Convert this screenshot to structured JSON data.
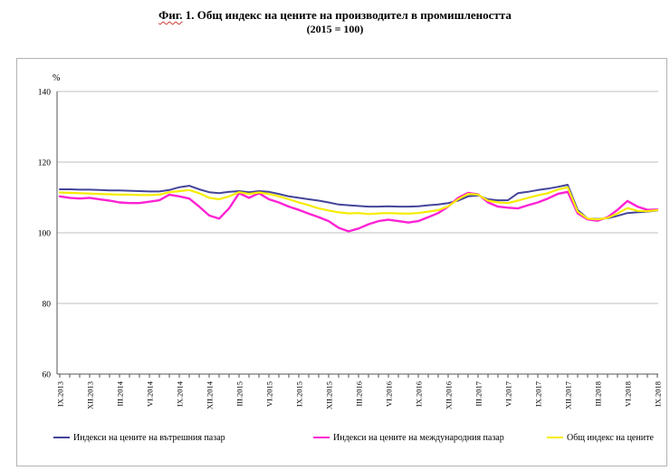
{
  "title": {
    "prefix": "Фиг.",
    "rest": " 1. Общ индекс на цените на производител в промишлеността",
    "subtitle": "(2015 = 100)"
  },
  "chart_data": {
    "type": "line",
    "title": "Фиг. 1. Общ индекс на цените на производител в промишлеността (2015 = 100)",
    "ylabel": "%",
    "ylim": [
      60,
      140
    ],
    "yticks": [
      60,
      80,
      100,
      120,
      140
    ],
    "grid": "horizontal",
    "legend_position": "bottom",
    "label_step": 3,
    "x_labels": [
      "IX.2013",
      "XII.2013",
      "III.2014",
      "VI.2014",
      "IX.2014",
      "XII.2014",
      "III.2015",
      "VI.2015",
      "IX.2015",
      "XII.2015",
      "III.2016",
      "VI.2016",
      "IX.2016",
      "XII.2016",
      "III.2017",
      "VI.2017",
      "IX.2017",
      "XII.2017",
      "III.2018",
      "VI.2018",
      "IX.2018"
    ],
    "series": [
      {
        "name": "Индекси на цените на вътрешния пазар",
        "color": "#44449a",
        "width": 2,
        "values": [
          112.3,
          112.3,
          112.2,
          112.2,
          112.1,
          112.0,
          112.0,
          111.9,
          111.8,
          111.7,
          111.7,
          112.1,
          112.9,
          113.3,
          112.3,
          111.5,
          111.2,
          111.6,
          111.8,
          111.5,
          111.8,
          111.6,
          111.0,
          110.3,
          109.9,
          109.5,
          109.1,
          108.6,
          108.0,
          107.8,
          107.6,
          107.4,
          107.4,
          107.5,
          107.4,
          107.4,
          107.5,
          107.8,
          108.0,
          108.4,
          109.1,
          110.3,
          110.6,
          109.5,
          109.2,
          109.2,
          111.2,
          111.6,
          112.1,
          112.5,
          113.0,
          113.6,
          106.5,
          104.0,
          103.9,
          104.1,
          104.8,
          105.6,
          105.8,
          106.0,
          106.3
        ]
      },
      {
        "name": "Индекси на цените на международния пазар",
        "color": "#ff22d4",
        "width": 2.4,
        "values": [
          110.3,
          109.9,
          109.7,
          109.9,
          109.5,
          109.1,
          108.6,
          108.4,
          108.4,
          108.8,
          109.2,
          110.8,
          110.3,
          109.7,
          107.4,
          104.9,
          104.0,
          106.9,
          111.2,
          109.9,
          111.2,
          109.5,
          108.6,
          107.4,
          106.5,
          105.4,
          104.4,
          103.3,
          101.4,
          100.4,
          101.2,
          102.4,
          103.3,
          103.7,
          103.3,
          102.9,
          103.3,
          104.4,
          105.6,
          107.4,
          109.9,
          111.3,
          110.9,
          108.6,
          107.4,
          107.1,
          106.9,
          107.8,
          108.6,
          109.7,
          111.0,
          111.6,
          105.5,
          103.8,
          103.4,
          104.4,
          106.5,
          109.0,
          107.4,
          106.5,
          106.6
        ]
      },
      {
        "name": "Общ индекс на цените",
        "color": "#f6ec00",
        "width": 2.2,
        "values": [
          111.4,
          111.3,
          111.2,
          111.1,
          111.0,
          110.9,
          110.8,
          110.8,
          110.7,
          110.7,
          110.8,
          111.5,
          111.8,
          112.1,
          111.2,
          109.9,
          109.5,
          110.3,
          111.5,
          111.0,
          111.4,
          111.0,
          110.3,
          109.5,
          108.6,
          107.8,
          106.9,
          106.3,
          105.8,
          105.5,
          105.6,
          105.3,
          105.5,
          105.6,
          105.5,
          105.4,
          105.6,
          106.0,
          106.4,
          107.5,
          109.5,
          111.0,
          110.8,
          109.1,
          108.6,
          108.4,
          109.1,
          109.9,
          110.6,
          111.2,
          112.2,
          112.9,
          106.0,
          104.0,
          103.8,
          104.2,
          105.5,
          107.0,
          106.2,
          106.1,
          106.4
        ]
      }
    ]
  }
}
